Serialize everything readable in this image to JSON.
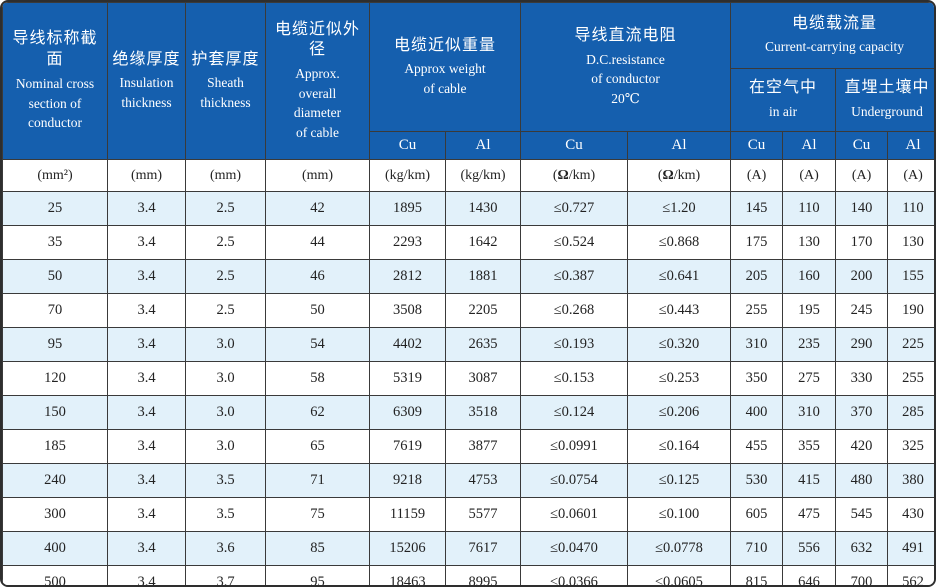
{
  "colors": {
    "header_bg": "#155fae",
    "header_text": "#ffffff",
    "row_alt_bg": "#e2f1fa",
    "row_bg": "#ffffff",
    "border": "#3a3a3a",
    "body_text": "#222222"
  },
  "table": {
    "headers": {
      "col1": {
        "zh": "导线标称截面",
        "en": "Nominal cross\nsection of\nconductor"
      },
      "col2": {
        "zh": "绝缘厚度",
        "en": "Insulation\nthickness"
      },
      "col3": {
        "zh": "护套厚度",
        "en": "Sheath\nthickness"
      },
      "col4": {
        "zh": "电缆近似外径",
        "en": "Approx.\noverall\ndiameter\nof cable"
      },
      "weight": {
        "zh": "电缆近似重量",
        "en": "Approx weight\nof cable"
      },
      "resistance": {
        "zh": "导线直流电阻",
        "en": "D.C.resistance\nof conductor\n20℃"
      },
      "capacity": {
        "zh": "电缆载流量",
        "en": "Current-carrying capacity"
      },
      "in_air": {
        "zh": "在空气中",
        "en": "in air"
      },
      "underground": {
        "zh": "直埋土壤中",
        "en": "Underground"
      }
    },
    "metal_row": [
      "Cu",
      "Al",
      "Cu",
      "Al",
      "Cu",
      "Al",
      "Cu",
      "Al"
    ],
    "units": [
      "(mm²)",
      "(mm)",
      "(mm)",
      "(mm)",
      "(kg/km)",
      "(kg/km)",
      "(Ω/km)",
      "(Ω/km)",
      "(A)",
      "(A)",
      "(A)",
      "(A)"
    ],
    "rows": [
      [
        "25",
        "3.4",
        "2.5",
        "42",
        "1895",
        "1430",
        "≤0.727",
        "≤1.20",
        "145",
        "110",
        "140",
        "110"
      ],
      [
        "35",
        "3.4",
        "2.5",
        "44",
        "2293",
        "1642",
        "≤0.524",
        "≤0.868",
        "175",
        "130",
        "170",
        "130"
      ],
      [
        "50",
        "3.4",
        "2.5",
        "46",
        "2812",
        "1881",
        "≤0.387",
        "≤0.641",
        "205",
        "160",
        "200",
        "155"
      ],
      [
        "70",
        "3.4",
        "2.5",
        "50",
        "3508",
        "2205",
        "≤0.268",
        "≤0.443",
        "255",
        "195",
        "245",
        "190"
      ],
      [
        "95",
        "3.4",
        "3.0",
        "54",
        "4402",
        "2635",
        "≤0.193",
        "≤0.320",
        "310",
        "235",
        "290",
        "225"
      ],
      [
        "120",
        "3.4",
        "3.0",
        "58",
        "5319",
        "3087",
        "≤0.153",
        "≤0.253",
        "350",
        "275",
        "330",
        "255"
      ],
      [
        "150",
        "3.4",
        "3.0",
        "62",
        "6309",
        "3518",
        "≤0.124",
        "≤0.206",
        "400",
        "310",
        "370",
        "285"
      ],
      [
        "185",
        "3.4",
        "3.0",
        "65",
        "7619",
        "3877",
        "≤0.0991",
        "≤0.164",
        "455",
        "355",
        "420",
        "325"
      ],
      [
        "240",
        "3.4",
        "3.5",
        "71",
        "9218",
        "4753",
        "≤0.0754",
        "≤0.125",
        "530",
        "415",
        "480",
        "380"
      ],
      [
        "300",
        "3.4",
        "3.5",
        "75",
        "11159",
        "5577",
        "≤0.0601",
        "≤0.100",
        "605",
        "475",
        "545",
        "430"
      ],
      [
        "400",
        "3.4",
        "3.6",
        "85",
        "15206",
        "7617",
        "≤0.0470",
        "≤0.0778",
        "710",
        "556",
        "632",
        "491"
      ],
      [
        "500",
        "3.4",
        "3.7",
        "95",
        "18463",
        "8995",
        "≤0.0366",
        "≤0.0605",
        "815",
        "646",
        "700",
        "562"
      ]
    ]
  }
}
